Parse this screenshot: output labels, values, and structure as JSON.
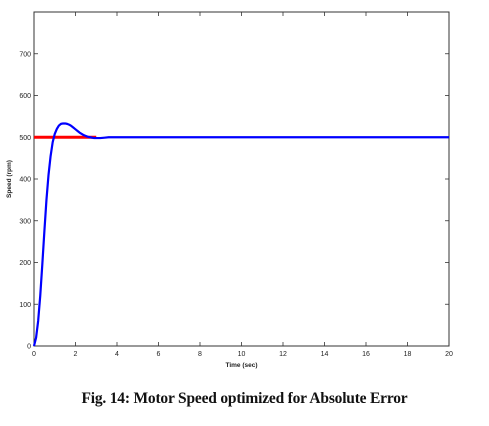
{
  "figure": {
    "caption": "Fig. 14: Motor Speed optimized for Absolute Error"
  },
  "chart_data": {
    "type": "line",
    "title": "",
    "xlabel": "Time (sec)",
    "ylabel": "Speed (rpm)",
    "xlim": [
      0,
      20
    ],
    "ylim": [
      0,
      800
    ],
    "xticks": [
      0,
      2,
      4,
      6,
      8,
      10,
      12,
      14,
      16,
      18,
      20
    ],
    "yticks": [
      0,
      100,
      200,
      300,
      400,
      500,
      600,
      700
    ],
    "grid": false,
    "legend": "none",
    "series": [
      {
        "color": "#ff0000",
        "x": [
          0,
          3
        ],
        "y": [
          500,
          500
        ]
      },
      {
        "color": "#0000ff",
        "x": [
          0,
          0.1,
          0.2,
          0.3,
          0.4,
          0.5,
          0.6,
          0.7,
          0.8,
          0.9,
          1.0,
          1.1,
          1.2,
          1.3,
          1.4,
          1.5,
          1.6,
          1.7,
          1.8,
          1.9,
          2.0,
          2.1,
          2.2,
          2.3,
          2.4,
          2.5,
          2.6,
          2.7,
          2.8,
          2.9,
          3.0,
          3.2,
          3.4,
          3.6,
          3.8,
          4.0,
          5.0,
          6.0,
          8.0,
          10.0,
          12.0,
          14.0,
          16.0,
          18.0,
          20.0
        ],
        "y": [
          0,
          20,
          60,
          120,
          195,
          275,
          350,
          410,
          455,
          488,
          508,
          520,
          528,
          532,
          533,
          533,
          532,
          530,
          527,
          523,
          519,
          515,
          511,
          508,
          505,
          503,
          501,
          500,
          499,
          498,
          498,
          498,
          499,
          500,
          500,
          500,
          500,
          500,
          500,
          500,
          500,
          500,
          500,
          500,
          500
        ]
      }
    ]
  }
}
